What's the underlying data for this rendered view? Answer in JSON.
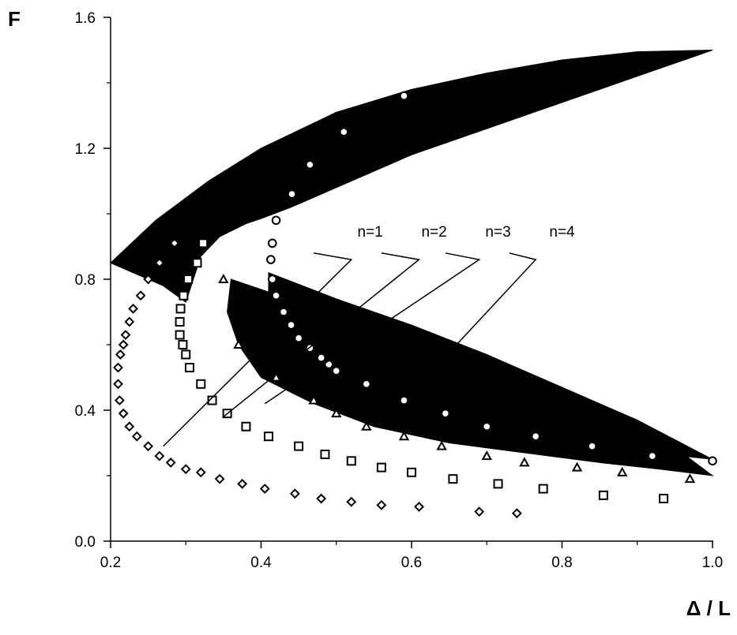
{
  "chart_data": {
    "type": "scatter",
    "title": "",
    "xlabel": "Δ / L",
    "ylabel": "F",
    "xlim": [
      0.2,
      1.0
    ],
    "ylim": [
      0.0,
      1.6
    ],
    "x_ticks": [
      0.2,
      0.4,
      0.6,
      0.8,
      1.0
    ],
    "x_tick_labels": [
      "0.2",
      "0.4",
      "0.6",
      "0.8",
      "1.0"
    ],
    "y_ticks": [
      0.0,
      0.4,
      0.8,
      1.2,
      1.6
    ],
    "y_tick_labels": [
      "0.0",
      "0.4",
      "0.8",
      "1.2",
      "1.6"
    ],
    "grid": false,
    "legend": "none",
    "colors": {
      "ink": "#000000",
      "background": "#ffffff"
    },
    "regions": [
      {
        "shape": "upper-wedge",
        "points": [
          [
            0.2,
            0.85
          ],
          [
            0.26,
            0.98
          ],
          [
            0.33,
            1.1
          ],
          [
            0.4,
            1.2
          ],
          [
            0.5,
            1.31
          ],
          [
            0.6,
            1.38
          ],
          [
            0.7,
            1.43
          ],
          [
            0.8,
            1.47
          ],
          [
            0.9,
            1.495
          ],
          [
            1.0,
            1.5
          ],
          [
            0.9,
            1.42
          ],
          [
            0.8,
            1.34
          ],
          [
            0.7,
            1.26
          ],
          [
            0.6,
            1.18
          ],
          [
            0.5,
            1.08
          ],
          [
            0.44,
            1.02
          ],
          [
            0.4,
            0.985
          ],
          [
            0.38,
            0.97
          ],
          [
            0.345,
            0.93
          ],
          [
            0.32,
            0.87
          ],
          [
            0.31,
            0.8
          ],
          [
            0.3,
            0.73
          ],
          [
            0.27,
            0.78
          ],
          [
            0.2,
            0.85
          ]
        ]
      },
      {
        "shape": "lower-wedge-n3",
        "points": [
          [
            0.36,
            0.8
          ],
          [
            0.45,
            0.73
          ],
          [
            0.55,
            0.65
          ],
          [
            0.65,
            0.57
          ],
          [
            0.75,
            0.49
          ],
          [
            0.85,
            0.4
          ],
          [
            0.93,
            0.32
          ],
          [
            1.0,
            0.2
          ],
          [
            0.93,
            0.22
          ],
          [
            0.85,
            0.24
          ],
          [
            0.75,
            0.27
          ],
          [
            0.65,
            0.3
          ],
          [
            0.55,
            0.35
          ],
          [
            0.47,
            0.42
          ],
          [
            0.4,
            0.5
          ],
          [
            0.37,
            0.6
          ],
          [
            0.355,
            0.7
          ],
          [
            0.36,
            0.8
          ]
        ]
      },
      {
        "shape": "lower-wedge-n4",
        "points": [
          [
            0.41,
            0.82
          ],
          [
            0.5,
            0.74
          ],
          [
            0.6,
            0.66
          ],
          [
            0.7,
            0.57
          ],
          [
            0.8,
            0.47
          ],
          [
            0.9,
            0.37
          ],
          [
            1.0,
            0.25
          ],
          [
            0.92,
            0.27
          ],
          [
            0.83,
            0.3
          ],
          [
            0.72,
            0.34
          ],
          [
            0.62,
            0.4
          ],
          [
            0.53,
            0.48
          ],
          [
            0.46,
            0.58
          ],
          [
            0.42,
            0.68
          ],
          [
            0.41,
            0.75
          ],
          [
            0.41,
            0.82
          ]
        ]
      }
    ],
    "series": [
      {
        "marker": "diamond",
        "points": [
          [
            0.285,
            0.91
          ],
          [
            0.265,
            0.85
          ],
          [
            0.25,
            0.8
          ],
          [
            0.24,
            0.75
          ],
          [
            0.23,
            0.71
          ],
          [
            0.225,
            0.67
          ],
          [
            0.22,
            0.63
          ],
          [
            0.217,
            0.6
          ],
          [
            0.213,
            0.57
          ],
          [
            0.21,
            0.53
          ],
          [
            0.21,
            0.48
          ],
          [
            0.212,
            0.43
          ],
          [
            0.217,
            0.39
          ],
          [
            0.225,
            0.35
          ],
          [
            0.235,
            0.32
          ],
          [
            0.25,
            0.29
          ],
          [
            0.265,
            0.26
          ],
          [
            0.28,
            0.24
          ],
          [
            0.3,
            0.22
          ],
          [
            0.32,
            0.21
          ],
          [
            0.345,
            0.19
          ],
          [
            0.375,
            0.175
          ],
          [
            0.405,
            0.16
          ],
          [
            0.445,
            0.145
          ],
          [
            0.48,
            0.13
          ],
          [
            0.52,
            0.12
          ],
          [
            0.56,
            0.11
          ],
          [
            0.61,
            0.105
          ],
          [
            0.69,
            0.09
          ],
          [
            0.74,
            0.085
          ]
        ]
      },
      {
        "marker": "square",
        "points": [
          [
            0.323,
            0.91
          ],
          [
            0.315,
            0.85
          ],
          [
            0.303,
            0.8
          ],
          [
            0.297,
            0.75
          ],
          [
            0.293,
            0.71
          ],
          [
            0.292,
            0.67
          ],
          [
            0.292,
            0.63
          ],
          [
            0.296,
            0.6
          ],
          [
            0.3,
            0.57
          ],
          [
            0.305,
            0.53
          ],
          [
            0.32,
            0.48
          ],
          [
            0.335,
            0.43
          ],
          [
            0.355,
            0.39
          ],
          [
            0.38,
            0.35
          ],
          [
            0.41,
            0.32
          ],
          [
            0.45,
            0.29
          ],
          [
            0.485,
            0.265
          ],
          [
            0.52,
            0.245
          ],
          [
            0.56,
            0.225
          ],
          [
            0.6,
            0.21
          ],
          [
            0.655,
            0.19
          ],
          [
            0.715,
            0.175
          ],
          [
            0.775,
            0.16
          ],
          [
            0.855,
            0.14
          ],
          [
            0.935,
            0.13
          ]
        ]
      },
      {
        "marker": "triangle",
        "points": [
          [
            0.35,
            0.8
          ],
          [
            0.37,
            0.6
          ],
          [
            0.42,
            0.5
          ],
          [
            0.47,
            0.43
          ],
          [
            0.5,
            0.39
          ],
          [
            0.54,
            0.35
          ],
          [
            0.59,
            0.32
          ],
          [
            0.64,
            0.29
          ],
          [
            0.7,
            0.26
          ],
          [
            0.75,
            0.24
          ],
          [
            0.82,
            0.225
          ],
          [
            0.88,
            0.21
          ],
          [
            0.97,
            0.19
          ]
        ]
      },
      {
        "marker": "circle",
        "points": [
          [
            0.441,
            1.06
          ],
          [
            0.465,
            1.15
          ],
          [
            0.51,
            1.25
          ],
          [
            0.59,
            1.36
          ],
          [
            0.42,
            0.98
          ],
          [
            0.415,
            0.91
          ],
          [
            0.413,
            0.86
          ],
          [
            0.415,
            0.8
          ],
          [
            0.42,
            0.75
          ],
          [
            0.43,
            0.7
          ],
          [
            0.44,
            0.66
          ],
          [
            0.45,
            0.62
          ],
          [
            0.465,
            0.59
          ],
          [
            0.48,
            0.56
          ],
          [
            0.49,
            0.54
          ],
          [
            0.5,
            0.52
          ],
          [
            0.54,
            0.48
          ],
          [
            0.59,
            0.43
          ],
          [
            0.645,
            0.39
          ],
          [
            0.7,
            0.35
          ],
          [
            0.765,
            0.32
          ],
          [
            0.84,
            0.29
          ],
          [
            0.92,
            0.26
          ],
          [
            1.0,
            0.245
          ]
        ]
      }
    ],
    "annotations": [
      {
        "text": "n=1",
        "at": [
          0.545,
          0.93
        ],
        "leader": [
          [
            0.47,
            0.88
          ],
          [
            0.52,
            0.86
          ],
          [
            0.27,
            0.29
          ]
        ]
      },
      {
        "text": "n=2",
        "at": [
          0.63,
          0.93
        ],
        "leader": [
          [
            0.56,
            0.88
          ],
          [
            0.61,
            0.86
          ],
          [
            0.35,
            0.38
          ]
        ]
      },
      {
        "text": "n=3",
        "at": [
          0.715,
          0.93
        ],
        "leader": [
          [
            0.645,
            0.88
          ],
          [
            0.69,
            0.86
          ],
          [
            0.405,
            0.42
          ]
        ]
      },
      {
        "text": "n=4",
        "at": [
          0.8,
          0.93
        ],
        "leader": [
          [
            0.73,
            0.88
          ],
          [
            0.765,
            0.86
          ],
          [
            0.595,
            0.44
          ]
        ]
      }
    ]
  }
}
